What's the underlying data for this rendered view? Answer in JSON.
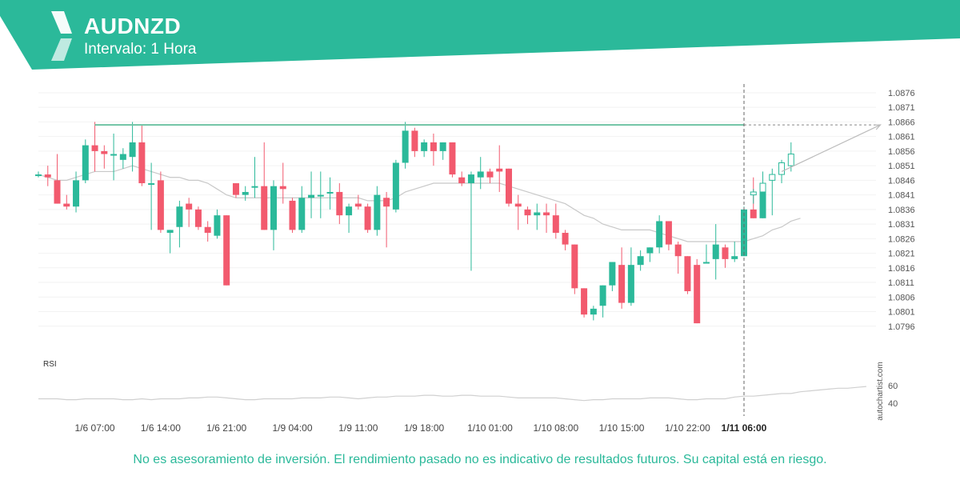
{
  "header": {
    "symbol": "AUDNZD",
    "interval": "Intervalo: 1 Hora",
    "brand_color": "#2bb99a"
  },
  "watermark": "autochartist.com",
  "disclaimer": "No es asesoramiento de inversión. El rendimiento pasado no es indicativo de resultados futuros. Su capital está en riesgo.",
  "chart_data": {
    "type": "candlestick",
    "title": "AUDNZD",
    "interval": "1 Hora",
    "y_ticks": [
      "1.0876",
      "1.0871",
      "1.0866",
      "1.0861",
      "1.0856",
      "1.0851",
      "1.0846",
      "1.0841",
      "1.0836",
      "1.0831",
      "1.0826",
      "1.0821",
      "1.0816",
      "1.0811",
      "1.0806",
      "1.0801",
      "1.0796"
    ],
    "ylim": [
      1.0791,
      1.0879
    ],
    "x_ticks": [
      {
        "label": "1/6 07:00",
        "index": 6
      },
      {
        "label": "1/6 14:00",
        "index": 13
      },
      {
        "label": "1/6 21:00",
        "index": 20
      },
      {
        "label": "1/9 04:00",
        "index": 27
      },
      {
        "label": "1/9 11:00",
        "index": 34
      },
      {
        "label": "1/9 18:00",
        "index": 41
      },
      {
        "label": "1/10 01:00",
        "index": 48
      },
      {
        "label": "1/10 08:00",
        "index": 55
      },
      {
        "label": "1/10 15:00",
        "index": 62
      },
      {
        "label": "1/10 22:00",
        "index": 69
      },
      {
        "label": "1/11 06:00",
        "index": 75,
        "bold": true
      }
    ],
    "up_color": "#2bb99a",
    "down_color": "#f25a6e",
    "forecast_start_index": 76,
    "candles": [
      {
        "o": 1.0848,
        "h": 1.0849,
        "l": 1.0847,
        "c": 1.0848
      },
      {
        "o": 1.0848,
        "h": 1.0851,
        "l": 1.0844,
        "c": 1.0847
      },
      {
        "o": 1.0846,
        "h": 1.0855,
        "l": 1.0838,
        "c": 1.0838
      },
      {
        "o": 1.0838,
        "h": 1.0841,
        "l": 1.0836,
        "c": 1.0837
      },
      {
        "o": 1.0837,
        "h": 1.0849,
        "l": 1.0835,
        "c": 1.0846
      },
      {
        "o": 1.0846,
        "h": 1.086,
        "l": 1.0845,
        "c": 1.0858
      },
      {
        "o": 1.0858,
        "h": 1.0866,
        "l": 1.0849,
        "c": 1.0856
      },
      {
        "o": 1.0856,
        "h": 1.0858,
        "l": 1.085,
        "c": 1.0855
      },
      {
        "o": 1.0855,
        "h": 1.0862,
        "l": 1.0846,
        "c": 1.0855
      },
      {
        "o": 1.0853,
        "h": 1.0857,
        "l": 1.085,
        "c": 1.0855
      },
      {
        "o": 1.0854,
        "h": 1.0866,
        "l": 1.0849,
        "c": 1.0859
      },
      {
        "o": 1.0859,
        "h": 1.0865,
        "l": 1.0844,
        "c": 1.0845
      },
      {
        "o": 1.0845,
        "h": 1.0852,
        "l": 1.0829,
        "c": 1.0845
      },
      {
        "o": 1.0846,
        "h": 1.0849,
        "l": 1.0828,
        "c": 1.0829
      },
      {
        "o": 1.0828,
        "h": 1.0829,
        "l": 1.0821,
        "c": 1.0829
      },
      {
        "o": 1.083,
        "h": 1.0839,
        "l": 1.0823,
        "c": 1.0837
      },
      {
        "o": 1.0838,
        "h": 1.084,
        "l": 1.083,
        "c": 1.0836
      },
      {
        "o": 1.0836,
        "h": 1.0837,
        "l": 1.0829,
        "c": 1.083
      },
      {
        "o": 1.083,
        "h": 1.0832,
        "l": 1.0825,
        "c": 1.0828
      },
      {
        "o": 1.0827,
        "h": 1.0836,
        "l": 1.0826,
        "c": 1.0834
      },
      {
        "o": 1.0834,
        "h": 1.0834,
        "l": 1.081,
        "c": 1.081
      },
      {
        "o": 1.0845,
        "h": 1.0845,
        "l": 1.084,
        "c": 1.0841
      },
      {
        "o": 1.0841,
        "h": 1.0844,
        "l": 1.0839,
        "c": 1.0842
      },
      {
        "o": 1.0844,
        "h": 1.0854,
        "l": 1.084,
        "c": 1.0844
      },
      {
        "o": 1.0844,
        "h": 1.0859,
        "l": 1.0829,
        "c": 1.0829
      },
      {
        "o": 1.0829,
        "h": 1.0846,
        "l": 1.0822,
        "c": 1.0844
      },
      {
        "o": 1.0844,
        "h": 1.0852,
        "l": 1.0838,
        "c": 1.0843
      },
      {
        "o": 1.0839,
        "h": 1.084,
        "l": 1.0828,
        "c": 1.0829
      },
      {
        "o": 1.0829,
        "h": 1.0844,
        "l": 1.0828,
        "c": 1.084
      },
      {
        "o": 1.084,
        "h": 1.0849,
        "l": 1.0833,
        "c": 1.0841
      },
      {
        "o": 1.0841,
        "h": 1.0849,
        "l": 1.0833,
        "c": 1.0841
      },
      {
        "o": 1.0842,
        "h": 1.0847,
        "l": 1.0836,
        "c": 1.0842
      },
      {
        "o": 1.0842,
        "h": 1.0845,
        "l": 1.0831,
        "c": 1.0834
      },
      {
        "o": 1.0834,
        "h": 1.0838,
        "l": 1.0828,
        "c": 1.0837
      },
      {
        "o": 1.0838,
        "h": 1.0841,
        "l": 1.0836,
        "c": 1.0837
      },
      {
        "o": 1.0837,
        "h": 1.0838,
        "l": 1.0828,
        "c": 1.0829
      },
      {
        "o": 1.0829,
        "h": 1.0844,
        "l": 1.0827,
        "c": 1.0841
      },
      {
        "o": 1.084,
        "h": 1.0842,
        "l": 1.0823,
        "c": 1.0837
      },
      {
        "o": 1.0836,
        "h": 1.0853,
        "l": 1.0835,
        "c": 1.0852
      },
      {
        "o": 1.0852,
        "h": 1.0866,
        "l": 1.085,
        "c": 1.0863
      },
      {
        "o": 1.0863,
        "h": 1.0864,
        "l": 1.0854,
        "c": 1.0856
      },
      {
        "o": 1.0856,
        "h": 1.086,
        "l": 1.0854,
        "c": 1.0859
      },
      {
        "o": 1.0859,
        "h": 1.0862,
        "l": 1.0851,
        "c": 1.0856
      },
      {
        "o": 1.0856,
        "h": 1.0859,
        "l": 1.0853,
        "c": 1.0859
      },
      {
        "o": 1.0859,
        "h": 1.0859,
        "l": 1.0847,
        "c": 1.0848
      },
      {
        "o": 1.0847,
        "h": 1.0849,
        "l": 1.0844,
        "c": 1.0845
      },
      {
        "o": 1.0845,
        "h": 1.0849,
        "l": 1.0815,
        "c": 1.0848
      },
      {
        "o": 1.0847,
        "h": 1.0854,
        "l": 1.0843,
        "c": 1.0849
      },
      {
        "o": 1.0849,
        "h": 1.085,
        "l": 1.0845,
        "c": 1.0847
      },
      {
        "o": 1.085,
        "h": 1.0858,
        "l": 1.0842,
        "c": 1.0849
      },
      {
        "o": 1.085,
        "h": 1.085,
        "l": 1.0837,
        "c": 1.0838
      },
      {
        "o": 1.0838,
        "h": 1.0841,
        "l": 1.0829,
        "c": 1.0837
      },
      {
        "o": 1.0836,
        "h": 1.0837,
        "l": 1.0831,
        "c": 1.0834
      },
      {
        "o": 1.0834,
        "h": 1.0838,
        "l": 1.0829,
        "c": 1.0835
      },
      {
        "o": 1.0835,
        "h": 1.0838,
        "l": 1.0828,
        "c": 1.0834
      },
      {
        "o": 1.0834,
        "h": 1.0838,
        "l": 1.0826,
        "c": 1.0828
      },
      {
        "o": 1.0828,
        "h": 1.0829,
        "l": 1.0822,
        "c": 1.0824
      },
      {
        "o": 1.0824,
        "h": 1.0824,
        "l": 1.0807,
        "c": 1.0809
      },
      {
        "o": 1.0809,
        "h": 1.0809,
        "l": 1.0799,
        "c": 1.08
      },
      {
        "o": 1.08,
        "h": 1.0803,
        "l": 1.0798,
        "c": 1.0802
      },
      {
        "o": 1.0803,
        "h": 1.081,
        "l": 1.0799,
        "c": 1.081
      },
      {
        "o": 1.081,
        "h": 1.0818,
        "l": 1.0808,
        "c": 1.0818
      },
      {
        "o": 1.0817,
        "h": 1.0823,
        "l": 1.0802,
        "c": 1.0804
      },
      {
        "o": 1.0804,
        "h": 1.0823,
        "l": 1.0803,
        "c": 1.0817
      },
      {
        "o": 1.0817,
        "h": 1.0822,
        "l": 1.0815,
        "c": 1.082
      },
      {
        "o": 1.0821,
        "h": 1.0823,
        "l": 1.0818,
        "c": 1.0823
      },
      {
        "o": 1.0823,
        "h": 1.0834,
        "l": 1.0821,
        "c": 1.0832
      },
      {
        "o": 1.0832,
        "h": 1.0832,
        "l": 1.0822,
        "c": 1.0824
      },
      {
        "o": 1.0824,
        "h": 1.0825,
        "l": 1.0814,
        "c": 1.082
      },
      {
        "o": 1.082,
        "h": 1.082,
        "l": 1.0807,
        "c": 1.0808
      },
      {
        "o": 1.0817,
        "h": 1.0819,
        "l": 1.0797,
        "c": 1.0797
      },
      {
        "o": 1.0818,
        "h": 1.0824,
        "l": 1.0818,
        "c": 1.0818
      },
      {
        "o": 1.0819,
        "h": 1.0831,
        "l": 1.0812,
        "c": 1.0824
      },
      {
        "o": 1.0823,
        "h": 1.0824,
        "l": 1.0816,
        "c": 1.0819
      },
      {
        "o": 1.0819,
        "h": 1.0825,
        "l": 1.0818,
        "c": 1.082
      },
      {
        "o": 1.082,
        "h": 1.0837,
        "l": 1.082,
        "c": 1.0836
      },
      {
        "o": 1.0836,
        "h": 1.0847,
        "l": 1.0833,
        "c": 1.0833
      },
      {
        "o": 1.0833,
        "h": 1.0844,
        "l": 1.0833,
        "c": 1.0842
      }
    ],
    "forecast_candles": [
      {
        "o": 1.0841,
        "h": 1.0843,
        "l": 1.0838,
        "c": 1.0842
      },
      {
        "o": 1.0842,
        "h": 1.0849,
        "l": 1.0837,
        "c": 1.0845
      },
      {
        "o": 1.0846,
        "h": 1.085,
        "l": 1.0834,
        "c": 1.0848
      },
      {
        "o": 1.0848,
        "h": 1.0853,
        "l": 1.0845,
        "c": 1.0852
      },
      {
        "o": 1.0851,
        "h": 1.0859,
        "l": 1.0849,
        "c": 1.0855
      }
    ],
    "resistance_level": 1.0865,
    "moving_average": [
      1.0848,
      1.0847,
      1.0846,
      1.0846,
      1.0847,
      1.0848,
      1.0849,
      1.0849,
      1.0849,
      1.085,
      1.0851,
      1.085,
      1.0849,
      1.0848,
      1.0847,
      1.0847,
      1.0846,
      1.0846,
      1.0845,
      1.0843,
      1.0841,
      1.084,
      1.084,
      1.084,
      1.084,
      1.084,
      1.084,
      1.084,
      1.084,
      1.084,
      1.084,
      1.084,
      1.084,
      1.084,
      1.084,
      1.0839,
      1.0839,
      1.0839,
      1.084,
      1.0842,
      1.0843,
      1.0844,
      1.0845,
      1.0845,
      1.0845,
      1.0845,
      1.0845,
      1.0845,
      1.0845,
      1.0845,
      1.0844,
      1.0843,
      1.0842,
      1.0841,
      1.084,
      1.0839,
      1.0838,
      1.0836,
      1.0834,
      1.0833,
      1.0831,
      1.083,
      1.0829,
      1.0829,
      1.0829,
      1.0829,
      1.0828,
      1.0827,
      1.0826,
      1.0825,
      1.0825,
      1.0825,
      1.0825,
      1.0825,
      1.0825,
      1.0825,
      1.0826,
      1.0827,
      1.0829,
      1.083,
      1.0832,
      1.0833
    ],
    "projection": {
      "from": {
        "index": 79,
        "value": 1.0849
      },
      "to": {
        "index": 89.5,
        "value": 1.0865
      }
    },
    "rsi": {
      "label": "RSI",
      "ticks": [
        "60",
        "40"
      ],
      "ylim": [
        30,
        80
      ],
      "values": [
        45,
        45,
        45,
        44,
        44,
        45,
        45,
        45,
        45,
        44,
        44,
        45,
        44,
        45,
        45,
        45,
        46,
        46,
        47,
        47,
        46,
        45,
        44,
        44,
        45,
        45,
        45,
        45,
        46,
        46,
        46,
        47,
        47,
        46,
        45,
        46,
        47,
        47,
        48,
        48,
        48,
        49,
        49,
        48,
        48,
        49,
        49,
        48,
        48,
        48,
        47,
        46,
        46,
        46,
        46,
        46,
        45,
        44,
        43,
        44,
        44,
        45,
        45,
        45,
        45,
        46,
        46,
        46,
        45,
        44,
        44,
        45,
        45,
        45,
        47,
        48,
        48,
        49,
        50,
        51,
        51,
        53,
        54,
        55,
        56,
        57,
        57,
        58,
        59
      ]
    }
  }
}
